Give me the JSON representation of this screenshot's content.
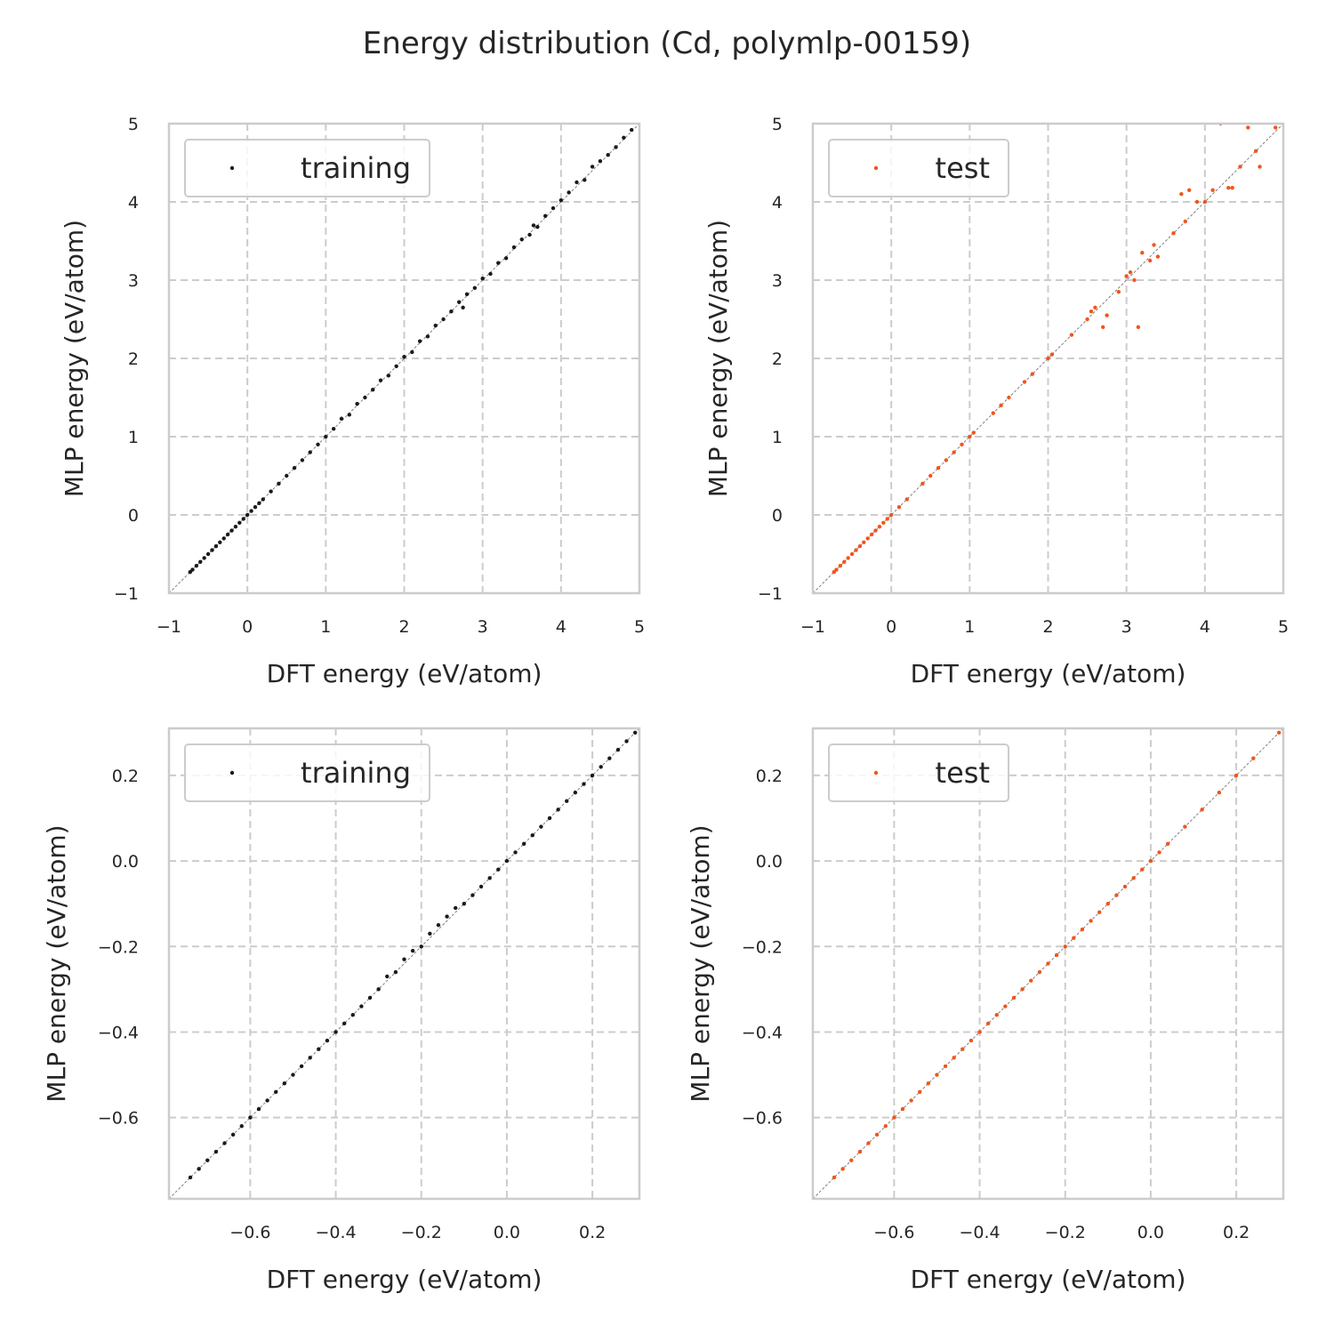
{
  "figure": {
    "title": "Energy distribution (Cd, polymlp-00159)"
  },
  "colors": {
    "training": "#1a1a1a",
    "test": "#f2541b",
    "grid": "#cccccc",
    "frame": "#cccccc",
    "diagonal": "#808080"
  },
  "chart_data": [
    {
      "type": "scatter",
      "panel": "top-left",
      "xlabel": "DFT energy (eV/atom)",
      "ylabel": "MLP energy (eV/atom)",
      "xlim": [
        -1,
        5
      ],
      "ylim": [
        -1,
        5
      ],
      "xticks": [
        -1,
        0,
        1,
        2,
        3,
        4,
        5
      ],
      "yticks": [
        -1,
        0,
        1,
        2,
        3,
        4,
        5
      ],
      "xtick_labels": [
        "−1",
        "0",
        "1",
        "2",
        "3",
        "4",
        "5"
      ],
      "ytick_labels": [
        "−1",
        "0",
        "1",
        "2",
        "3",
        "4",
        "5"
      ],
      "grid": true,
      "legend": "top-left",
      "series": [
        {
          "name": "training",
          "color": "training",
          "points": [
            [
              -0.73,
              -0.73
            ],
            [
              -0.7,
              -0.7
            ],
            [
              -0.65,
              -0.65
            ],
            [
              -0.6,
              -0.6
            ],
            [
              -0.55,
              -0.55
            ],
            [
              -0.5,
              -0.5
            ],
            [
              -0.45,
              -0.45
            ],
            [
              -0.4,
              -0.4
            ],
            [
              -0.35,
              -0.35
            ],
            [
              -0.3,
              -0.3
            ],
            [
              -0.25,
              -0.25
            ],
            [
              -0.2,
              -0.2
            ],
            [
              -0.15,
              -0.15
            ],
            [
              -0.1,
              -0.1
            ],
            [
              -0.05,
              -0.05
            ],
            [
              0.0,
              0.0
            ],
            [
              0.05,
              0.05
            ],
            [
              0.1,
              0.1
            ],
            [
              0.15,
              0.15
            ],
            [
              0.2,
              0.2
            ],
            [
              0.3,
              0.3
            ],
            [
              0.4,
              0.4
            ],
            [
              0.5,
              0.5
            ],
            [
              0.6,
              0.6
            ],
            [
              0.7,
              0.7
            ],
            [
              0.8,
              0.8
            ],
            [
              0.9,
              0.9
            ],
            [
              1.0,
              1.0
            ],
            [
              1.1,
              1.1
            ],
            [
              1.2,
              1.23
            ],
            [
              1.3,
              1.28
            ],
            [
              1.4,
              1.42
            ],
            [
              1.5,
              1.5
            ],
            [
              1.6,
              1.6
            ],
            [
              1.7,
              1.72
            ],
            [
              1.8,
              1.78
            ],
            [
              1.9,
              1.9
            ],
            [
              2.0,
              2.02
            ],
            [
              2.1,
              2.08
            ],
            [
              2.2,
              2.22
            ],
            [
              2.3,
              2.28
            ],
            [
              2.4,
              2.42
            ],
            [
              2.5,
              2.5
            ],
            [
              2.6,
              2.6
            ],
            [
              2.7,
              2.72
            ],
            [
              2.75,
              2.65
            ],
            [
              2.8,
              2.82
            ],
            [
              2.9,
              2.9
            ],
            [
              3.0,
              3.02
            ],
            [
              3.1,
              3.08
            ],
            [
              3.2,
              3.22
            ],
            [
              3.3,
              3.28
            ],
            [
              3.4,
              3.42
            ],
            [
              3.5,
              3.52
            ],
            [
              3.6,
              3.58
            ],
            [
              3.65,
              3.7
            ],
            [
              3.7,
              3.68
            ],
            [
              3.8,
              3.82
            ],
            [
              3.9,
              3.92
            ],
            [
              4.0,
              4.02
            ],
            [
              4.1,
              4.12
            ],
            [
              4.2,
              4.25
            ],
            [
              4.3,
              4.28
            ],
            [
              4.4,
              4.45
            ],
            [
              4.5,
              4.52
            ],
            [
              4.6,
              4.6
            ],
            [
              4.7,
              4.7
            ],
            [
              4.8,
              4.82
            ],
            [
              4.9,
              4.92
            ]
          ]
        }
      ]
    },
    {
      "type": "scatter",
      "panel": "top-right",
      "xlabel": "DFT energy (eV/atom)",
      "ylabel": "MLP energy (eV/atom)",
      "xlim": [
        -1,
        5
      ],
      "ylim": [
        -1,
        5
      ],
      "xticks": [
        -1,
        0,
        1,
        2,
        3,
        4,
        5
      ],
      "yticks": [
        -1,
        0,
        1,
        2,
        3,
        4,
        5
      ],
      "xtick_labels": [
        "−1",
        "0",
        "1",
        "2",
        "3",
        "4",
        "5"
      ],
      "ytick_labels": [
        "−1",
        "0",
        "1",
        "2",
        "3",
        "4",
        "5"
      ],
      "grid": true,
      "legend": "top-left",
      "series": [
        {
          "name": "test",
          "color": "test",
          "points": [
            [
              -0.73,
              -0.73
            ],
            [
              -0.7,
              -0.7
            ],
            [
              -0.65,
              -0.65
            ],
            [
              -0.6,
              -0.6
            ],
            [
              -0.55,
              -0.55
            ],
            [
              -0.5,
              -0.5
            ],
            [
              -0.45,
              -0.45
            ],
            [
              -0.4,
              -0.4
            ],
            [
              -0.35,
              -0.35
            ],
            [
              -0.3,
              -0.3
            ],
            [
              -0.25,
              -0.25
            ],
            [
              -0.2,
              -0.2
            ],
            [
              -0.15,
              -0.15
            ],
            [
              -0.1,
              -0.1
            ],
            [
              -0.05,
              -0.05
            ],
            [
              0.0,
              0.0
            ],
            [
              0.1,
              0.1
            ],
            [
              0.2,
              0.2
            ],
            [
              0.4,
              0.4
            ],
            [
              0.5,
              0.5
            ],
            [
              0.6,
              0.6
            ],
            [
              0.7,
              0.7
            ],
            [
              0.8,
              0.8
            ],
            [
              0.9,
              0.9
            ],
            [
              1.0,
              1.0
            ],
            [
              1.05,
              1.05
            ],
            [
              1.3,
              1.3
            ],
            [
              1.4,
              1.4
            ],
            [
              1.5,
              1.5
            ],
            [
              1.7,
              1.7
            ],
            [
              1.8,
              1.8
            ],
            [
              2.0,
              2.0
            ],
            [
              2.05,
              2.05
            ],
            [
              2.3,
              2.3
            ],
            [
              2.5,
              2.5
            ],
            [
              2.55,
              2.6
            ],
            [
              2.6,
              2.65
            ],
            [
              2.7,
              2.4
            ],
            [
              2.75,
              2.55
            ],
            [
              2.9,
              2.85
            ],
            [
              3.0,
              3.05
            ],
            [
              3.05,
              3.1
            ],
            [
              3.1,
              3.0
            ],
            [
              3.15,
              2.4
            ],
            [
              3.2,
              3.35
            ],
            [
              3.3,
              3.25
            ],
            [
              3.35,
              3.45
            ],
            [
              3.4,
              3.3
            ],
            [
              3.6,
              3.6
            ],
            [
              3.7,
              4.1
            ],
            [
              3.75,
              3.75
            ],
            [
              3.8,
              4.15
            ],
            [
              3.9,
              4.0
            ],
            [
              4.0,
              4.0
            ],
            [
              4.1,
              4.15
            ],
            [
              4.2,
              5.0
            ],
            [
              4.3,
              4.18
            ],
            [
              4.35,
              4.18
            ],
            [
              4.45,
              4.45
            ],
            [
              4.55,
              4.95
            ],
            [
              4.65,
              4.65
            ],
            [
              4.7,
              4.45
            ],
            [
              4.9,
              4.95
            ]
          ]
        }
      ]
    },
    {
      "type": "scatter",
      "panel": "bottom-left",
      "xlabel": "DFT energy (eV/atom)",
      "ylabel": "MLP energy (eV/atom)",
      "xlim": [
        -0.79,
        0.31
      ],
      "ylim": [
        -0.79,
        0.31
      ],
      "xticks": [
        -0.6,
        -0.4,
        -0.2,
        0.0,
        0.2
      ],
      "yticks": [
        -0.6,
        -0.4,
        -0.2,
        0.0,
        0.2
      ],
      "xtick_labels": [
        "−0.6",
        "−0.4",
        "−0.2",
        "0.0",
        "0.2"
      ],
      "ytick_labels": [
        "−0.6",
        "−0.4",
        "−0.2",
        "0.0",
        "0.2"
      ],
      "grid": true,
      "legend": "top-left",
      "series": [
        {
          "name": "training",
          "color": "training",
          "points": [
            [
              -0.74,
              -0.74
            ],
            [
              -0.72,
              -0.72
            ],
            [
              -0.7,
              -0.7
            ],
            [
              -0.68,
              -0.68
            ],
            [
              -0.66,
              -0.66
            ],
            [
              -0.64,
              -0.64
            ],
            [
              -0.62,
              -0.62
            ],
            [
              -0.6,
              -0.6
            ],
            [
              -0.58,
              -0.58
            ],
            [
              -0.56,
              -0.56
            ],
            [
              -0.54,
              -0.54
            ],
            [
              -0.52,
              -0.52
            ],
            [
              -0.5,
              -0.5
            ],
            [
              -0.48,
              -0.48
            ],
            [
              -0.46,
              -0.46
            ],
            [
              -0.44,
              -0.44
            ],
            [
              -0.42,
              -0.42
            ],
            [
              -0.4,
              -0.4
            ],
            [
              -0.38,
              -0.38
            ],
            [
              -0.36,
              -0.36
            ],
            [
              -0.34,
              -0.34
            ],
            [
              -0.32,
              -0.32
            ],
            [
              -0.3,
              -0.3
            ],
            [
              -0.28,
              -0.27
            ],
            [
              -0.26,
              -0.26
            ],
            [
              -0.24,
              -0.23
            ],
            [
              -0.22,
              -0.21
            ],
            [
              -0.2,
              -0.2
            ],
            [
              -0.18,
              -0.17
            ],
            [
              -0.16,
              -0.15
            ],
            [
              -0.14,
              -0.13
            ],
            [
              -0.12,
              -0.11
            ],
            [
              -0.1,
              -0.1
            ],
            [
              -0.08,
              -0.08
            ],
            [
              -0.06,
              -0.06
            ],
            [
              -0.04,
              -0.04
            ],
            [
              -0.02,
              -0.02
            ],
            [
              0.0,
              0.0
            ],
            [
              0.02,
              0.02
            ],
            [
              0.04,
              0.04
            ],
            [
              0.06,
              0.06
            ],
            [
              0.08,
              0.08
            ],
            [
              0.1,
              0.1
            ],
            [
              0.12,
              0.12
            ],
            [
              0.14,
              0.14
            ],
            [
              0.16,
              0.16
            ],
            [
              0.18,
              0.18
            ],
            [
              0.2,
              0.2
            ],
            [
              0.22,
              0.22
            ],
            [
              0.24,
              0.24
            ],
            [
              0.26,
              0.26
            ],
            [
              0.28,
              0.28
            ],
            [
              0.3,
              0.3
            ]
          ]
        }
      ]
    },
    {
      "type": "scatter",
      "panel": "bottom-right",
      "xlabel": "DFT energy (eV/atom)",
      "ylabel": "MLP energy (eV/atom)",
      "xlim": [
        -0.79,
        0.31
      ],
      "ylim": [
        -0.79,
        0.31
      ],
      "xticks": [
        -0.6,
        -0.4,
        -0.2,
        0.0,
        0.2
      ],
      "yticks": [
        -0.6,
        -0.4,
        -0.2,
        0.0,
        0.2
      ],
      "xtick_labels": [
        "−0.6",
        "−0.4",
        "−0.2",
        "0.0",
        "0.2"
      ],
      "ytick_labels": [
        "−0.6",
        "−0.4",
        "−0.2",
        "0.0",
        "0.2"
      ],
      "grid": true,
      "legend": "top-left",
      "series": [
        {
          "name": "test",
          "color": "test",
          "points": [
            [
              -0.74,
              -0.74
            ],
            [
              -0.72,
              -0.72
            ],
            [
              -0.7,
              -0.7
            ],
            [
              -0.68,
              -0.68
            ],
            [
              -0.66,
              -0.66
            ],
            [
              -0.64,
              -0.64
            ],
            [
              -0.62,
              -0.62
            ],
            [
              -0.6,
              -0.6
            ],
            [
              -0.58,
              -0.58
            ],
            [
              -0.56,
              -0.56
            ],
            [
              -0.54,
              -0.54
            ],
            [
              -0.52,
              -0.52
            ],
            [
              -0.5,
              -0.5
            ],
            [
              -0.48,
              -0.48
            ],
            [
              -0.46,
              -0.46
            ],
            [
              -0.44,
              -0.44
            ],
            [
              -0.42,
              -0.42
            ],
            [
              -0.4,
              -0.4
            ],
            [
              -0.38,
              -0.38
            ],
            [
              -0.36,
              -0.36
            ],
            [
              -0.34,
              -0.34
            ],
            [
              -0.32,
              -0.32
            ],
            [
              -0.3,
              -0.3
            ],
            [
              -0.28,
              -0.28
            ],
            [
              -0.26,
              -0.26
            ],
            [
              -0.24,
              -0.24
            ],
            [
              -0.22,
              -0.22
            ],
            [
              -0.2,
              -0.2
            ],
            [
              -0.18,
              -0.18
            ],
            [
              -0.16,
              -0.16
            ],
            [
              -0.14,
              -0.14
            ],
            [
              -0.12,
              -0.12
            ],
            [
              -0.1,
              -0.1
            ],
            [
              -0.08,
              -0.08
            ],
            [
              -0.06,
              -0.06
            ],
            [
              -0.04,
              -0.04
            ],
            [
              -0.02,
              -0.02
            ],
            [
              0.0,
              0.0
            ],
            [
              0.02,
              0.02
            ],
            [
              0.04,
              0.04
            ],
            [
              0.08,
              0.08
            ],
            [
              0.12,
              0.12
            ],
            [
              0.16,
              0.16
            ],
            [
              0.2,
              0.2
            ],
            [
              0.24,
              0.24
            ],
            [
              0.3,
              0.3
            ]
          ]
        }
      ]
    }
  ]
}
